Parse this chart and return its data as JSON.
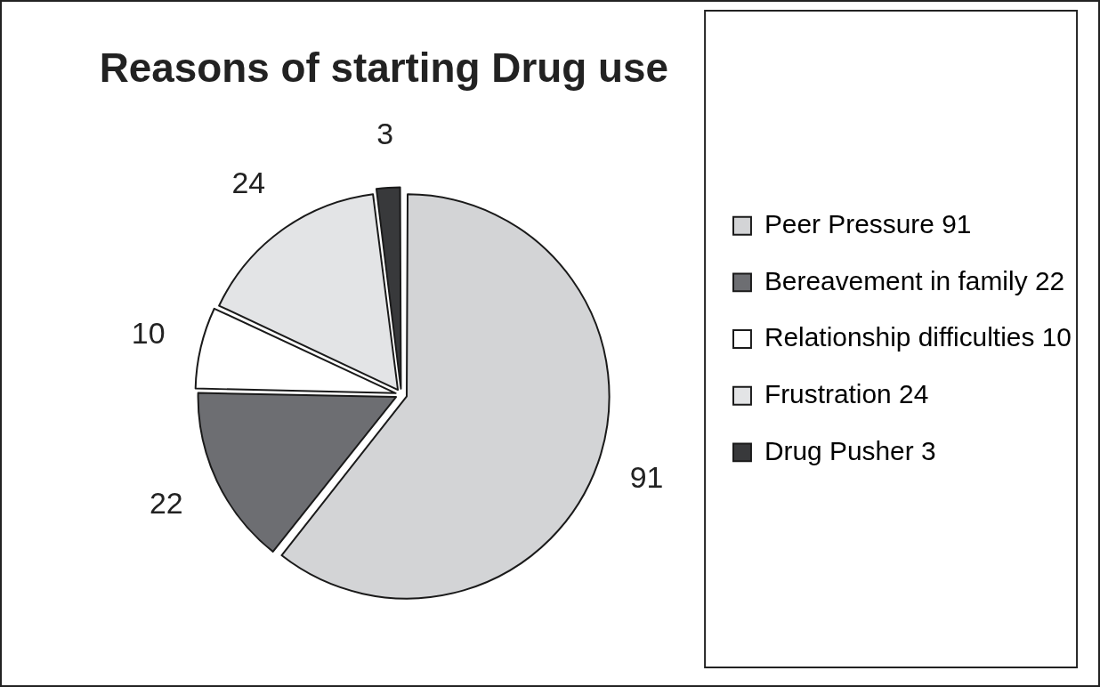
{
  "chart_data": {
    "type": "pie",
    "title": "Reasons of starting Drug use",
    "categories": [
      "Peer Pressure 91",
      "Bereavement in family 22",
      "Relationship difficulties 10",
      "Frustration 24",
      "Drug Pusher 3"
    ],
    "values": [
      91,
      22,
      10,
      24,
      3
    ],
    "colors": [
      "#d3d4d6",
      "#6d6e72",
      "#ffffff",
      "#e3e4e6",
      "#38393b"
    ],
    "data_labels": true,
    "legend": "right"
  }
}
